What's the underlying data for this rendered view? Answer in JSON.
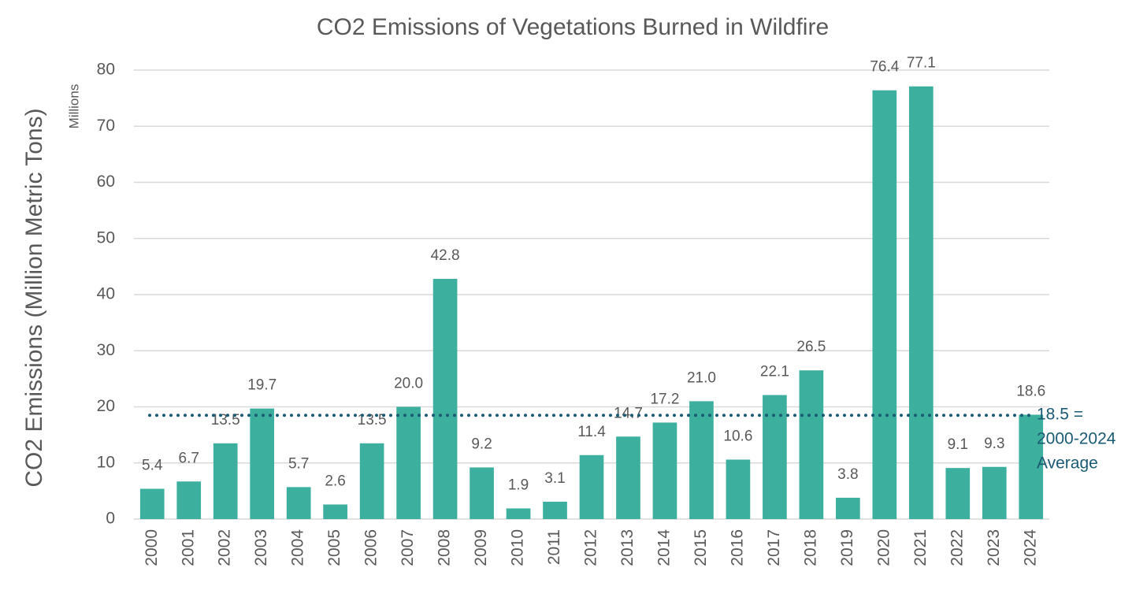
{
  "chart_data": {
    "type": "bar",
    "title": "CO2 Emissions of Vegetations Burned in Wildfire",
    "y_label": "CO2 Emissions (Million Metric Tons)",
    "y_unit_label": "Millions",
    "categories": [
      "2000",
      "2001",
      "2002",
      "2003",
      "2004",
      "2005",
      "2006",
      "2007",
      "2008",
      "2009",
      "2010",
      "2011",
      "2012",
      "2013",
      "2014",
      "2015",
      "2016",
      "2017",
      "2018",
      "2019",
      "2020",
      "2021",
      "2022",
      "2023",
      "2024"
    ],
    "values": [
      5.4,
      6.7,
      13.5,
      19.7,
      5.7,
      2.6,
      13.5,
      20.0,
      42.8,
      9.2,
      1.9,
      3.1,
      11.4,
      14.7,
      17.2,
      21.0,
      10.6,
      22.1,
      26.5,
      3.8,
      76.4,
      77.1,
      9.1,
      9.3,
      18.6
    ],
    "value_labels": [
      "5.4",
      "6.7",
      "13.5",
      "19.7",
      "5.7",
      "2.6",
      "13.5",
      "20.0",
      "42.8",
      "9.2",
      "1.9",
      "3.1",
      "11.4",
      "14.7",
      "17.2",
      "21.0",
      "10.6",
      "22.1",
      "26.5",
      "3.8",
      "76.4",
      "77.1",
      "9.1",
      "9.3",
      "18.6"
    ],
    "color": "#3daf9e",
    "ylim": [
      0,
      80
    ],
    "yticks": [
      0,
      10,
      20,
      30,
      40,
      50,
      60,
      70,
      80
    ],
    "grid": true,
    "reference_line": {
      "value": 18.5,
      "label": [
        "18.5 =",
        "2000-2024",
        "Average"
      ],
      "color": "#1b5a73"
    }
  }
}
